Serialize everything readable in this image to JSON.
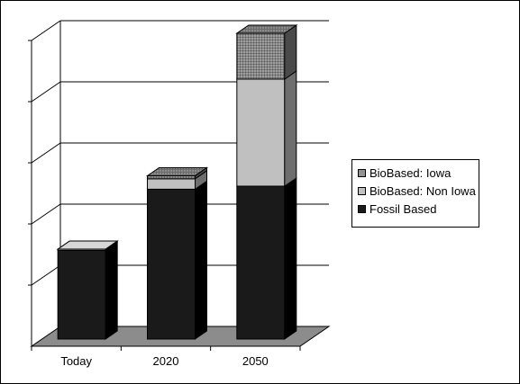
{
  "chart_data": {
    "type": "bar",
    "stacked": true,
    "style": "3d",
    "categories": [
      "Today",
      "2020",
      "2050"
    ],
    "series": [
      {
        "name": "Fossil Based",
        "values": [
          1.45,
          2.45,
          2.5
        ],
        "color": "#1a1a1a"
      },
      {
        "name": "BioBased: Non Iowa",
        "values": [
          0.02,
          0.17,
          1.75
        ],
        "color": "#c0c0c0"
      },
      {
        "name": "BioBased: Iowa",
        "values": [
          0.0,
          0.05,
          0.75
        ],
        "color": "#8a8a8a"
      }
    ],
    "title": "",
    "xlabel": "",
    "ylabel": "",
    "ylim": [
      0,
      5
    ],
    "y_tick_labels_shown": false,
    "grid": true,
    "legend": {
      "placement": "right",
      "entries": [
        "BioBased: Iowa",
        "BioBased: Non Iowa",
        "Fossil Based"
      ]
    }
  }
}
